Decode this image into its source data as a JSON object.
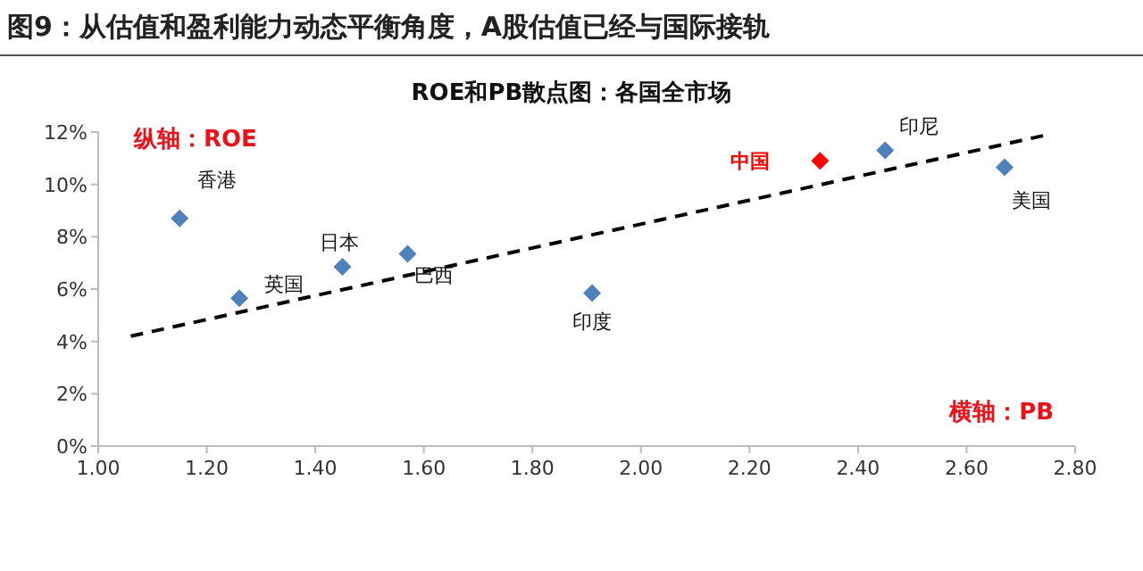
{
  "chart_data": {
    "type": "scatter",
    "title": "图9：从估值和盈利能力动态平衡角度，A股估值已经与国际接轨",
    "subtitle": "ROE和PB散点图：各国全市场",
    "xlabel": "横轴：PB",
    "ylabel": "纵轴：ROE",
    "xlim": [
      1.0,
      2.8
    ],
    "xticks": [
      {
        "value": 1.0,
        "label": "1.00"
      },
      {
        "value": 1.2,
        "label": "1.20"
      },
      {
        "value": 1.4,
        "label": "1.40"
      },
      {
        "value": 1.6,
        "label": "1.60"
      },
      {
        "value": 1.8,
        "label": "1.80"
      },
      {
        "value": 2.0,
        "label": "2.00"
      },
      {
        "value": 2.2,
        "label": "2.20"
      },
      {
        "value": 2.4,
        "label": "2.40"
      },
      {
        "value": 2.6,
        "label": "2.60"
      },
      {
        "value": 2.8,
        "label": "2.80"
      }
    ],
    "ylim": [
      0,
      12
    ],
    "yticks": [
      {
        "value": 0,
        "label": "0%"
      },
      {
        "value": 2,
        "label": "2%"
      },
      {
        "value": 4,
        "label": "4%"
      },
      {
        "value": 6,
        "label": "6%"
      },
      {
        "value": 8,
        "label": "8%"
      },
      {
        "value": 10,
        "label": "10%"
      },
      {
        "value": 12,
        "label": "12%"
      }
    ],
    "marker": "diamond",
    "series": [
      {
        "type": "line",
        "color": "#000000",
        "line_style": "dashed",
        "marker": "none",
        "x": [
          1.06,
          2.75
        ],
        "values": [
          4.2,
          11.9
        ]
      },
      {
        "color": "#4f81bd",
        "x": [
          1.15,
          1.26,
          1.45,
          1.57,
          1.91,
          2.45,
          2.67
        ],
        "values": [
          8.7,
          5.65,
          6.85,
          7.35,
          5.85,
          11.3,
          10.65
        ]
      },
      {
        "color": "#ff0000",
        "x": [
          2.33
        ],
        "values": [
          10.9
        ]
      }
    ],
    "annotations": [
      {
        "text": "香港",
        "x": 1.15,
        "y": 8.7
      },
      {
        "text": "英国",
        "x": 1.26,
        "y": 5.65
      },
      {
        "text": "日本",
        "x": 1.45,
        "y": 6.85
      },
      {
        "text": "巴西",
        "x": 1.57,
        "y": 7.35
      },
      {
        "text": "印度",
        "x": 1.91,
        "y": 5.85
      },
      {
        "text": "中国",
        "x": 2.33,
        "y": 10.9
      },
      {
        "text": "印尼",
        "x": 2.45,
        "y": 11.3
      },
      {
        "text": "美国",
        "x": 2.67,
        "y": 10.65
      }
    ]
  }
}
